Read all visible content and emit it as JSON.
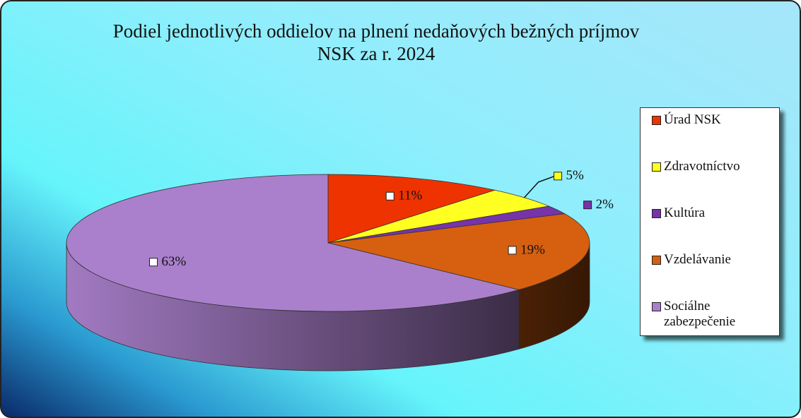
{
  "chart_data": {
    "type": "pie3d",
    "title": "Podiel jednotlivých oddielov na plnení nedaňových bežných príjmov NSK za r. 2024",
    "categories": [
      "Úrad NSK",
      "Zdravotníctvo",
      "Kultúra",
      "Vzdelávanie",
      "Sociálne zabezpečenie"
    ],
    "values": [
      11,
      5,
      2,
      19,
      63
    ],
    "value_labels": [
      "11%",
      "5%",
      "2%",
      "19%",
      "63%"
    ],
    "colors": [
      "#ee3300",
      "#ffff22",
      "#7733aa",
      "#d66010",
      "#aa80cc"
    ],
    "legend": "right"
  }
}
